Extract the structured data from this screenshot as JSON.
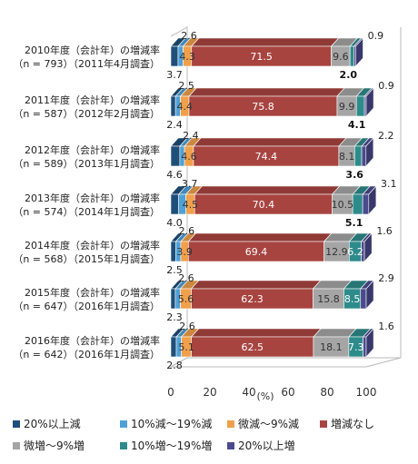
{
  "chart_data": {
    "type": "bar",
    "orientation": "horizontal",
    "stacked": true,
    "percent": true,
    "x_axis_unit": "(%)",
    "xlim": [
      0,
      100
    ],
    "x_ticks": [
      "0",
      "20",
      "40",
      "60",
      "80",
      "100"
    ],
    "categories": [
      {
        "line1": "2010年度（会計年）の増減率",
        "line2": "（n = 793）（2011年4月調査）"
      },
      {
        "line1": "2011年度（会計年）の増減率",
        "line2": "（n = 587）（2012年2月調査）"
      },
      {
        "line1": "2012年度（会計年）の増減率",
        "line2": "（n = 589）（2013年1月調査）"
      },
      {
        "line1": "2013年度（会計年）の増減率",
        "line2": "（n = 574）（2014年1月調査）"
      },
      {
        "line1": "2014年度（会計年）の増減率",
        "line2": "（n = 568）（2015年1月調査）"
      },
      {
        "line1": "2015年度（会計年）の増減率",
        "line2": "（n = 647）（2016年1月調査）"
      },
      {
        "line1": "2016年度（会計年）の増減率",
        "line2": "（n = 642）（2016年1月調査）"
      }
    ],
    "series": [
      {
        "name": "20%以上減",
        "color": "#1f4e79",
        "values": [
          3.7,
          2.4,
          4.6,
          4.0,
          2.5,
          2.3,
          2.8
        ]
      },
      {
        "name": "10%減～19%減",
        "color": "#4fa0d6",
        "values": [
          2.6,
          2.5,
          2.4,
          3.7,
          2.6,
          2.6,
          2.6
        ]
      },
      {
        "name": "微減～9%減",
        "color": "#f0a04b",
        "values": [
          4.3,
          4.4,
          4.6,
          4.5,
          3.9,
          5.6,
          5.1
        ]
      },
      {
        "name": "増減なし",
        "color": "#a84440",
        "values": [
          71.5,
          75.8,
          74.4,
          70.4,
          69.4,
          62.3,
          62.5
        ]
      },
      {
        "name": "微増～9%増",
        "color": "#a5a5a5",
        "values": [
          9.6,
          9.9,
          8.1,
          10.5,
          12.9,
          15.8,
          18.1
        ]
      },
      {
        "name": "10%増～19%増",
        "color": "#2e8b8b",
        "values": [
          2.0,
          4.1,
          3.6,
          5.1,
          6.2,
          8.5,
          7.3
        ]
      },
      {
        "name": "20%以上増",
        "color": "#4b4a8e",
        "values": [
          0.9,
          0.9,
          2.2,
          3.1,
          1.6,
          2.9,
          1.6
        ]
      }
    ],
    "legend_position": "bottom",
    "grid": false
  }
}
